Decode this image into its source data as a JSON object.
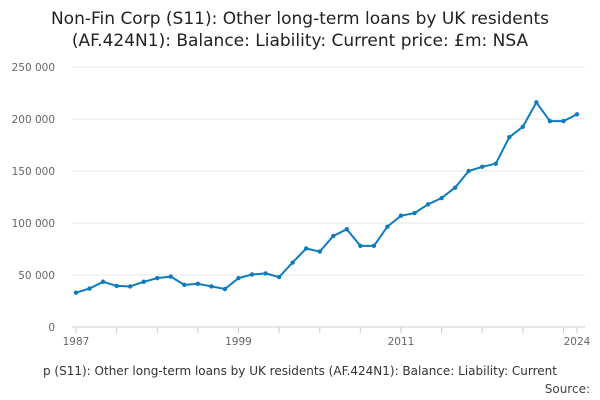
{
  "chart_data": {
    "type": "line",
    "title_lines": [
      "Non-Fin Corp (S11): Other long-term loans by UK residents",
      "(AF.424N1): Balance: Liability: Current price: £m: NSA"
    ],
    "ylim": [
      0,
      250000
    ],
    "xlim": [
      1987,
      2024
    ],
    "y_ticks": [
      0,
      50000,
      100000,
      150000,
      200000,
      250000
    ],
    "y_tick_labels": [
      "0",
      "50 000",
      "100 000",
      "150 000",
      "200 000",
      "250 000"
    ],
    "x_tick_labels": [
      {
        "x": 1987,
        "label": "1987"
      },
      {
        "x": 1999,
        "label": "1999"
      },
      {
        "x": 2011,
        "label": "2011"
      },
      {
        "x": 2024,
        "label": "2024"
      }
    ],
    "grid": true,
    "series": [
      {
        "color": "#0e7bbf",
        "x": [
          1987,
          1988,
          1989,
          1990,
          1991,
          1992,
          1993,
          1994,
          1995,
          1996,
          1997,
          1998,
          1999,
          2000,
          2001,
          2002,
          2003,
          2004,
          2005,
          2006,
          2007,
          2008,
          2009,
          2010,
          2011,
          2012,
          2013,
          2014,
          2015,
          2016,
          2017,
          2018,
          2019,
          2020,
          2021,
          2022,
          2023,
          2024
        ],
        "values": [
          33000,
          37000,
          43500,
          39500,
          39000,
          43500,
          47000,
          48500,
          40500,
          41500,
          39000,
          36500,
          47000,
          50500,
          51500,
          48000,
          62000,
          75500,
          72500,
          87500,
          94000,
          78000,
          78000,
          96500,
          107000,
          109500,
          118000,
          124000,
          134000,
          150000,
          154000,
          157000,
          182500,
          192500,
          216000,
          198000,
          198000,
          204500
        ]
      }
    ]
  },
  "footer": {
    "caption": "p (S11): Other long-term loans by UK residents (AF.424N1): Balance: Liability: Current",
    "source": "Source:"
  }
}
